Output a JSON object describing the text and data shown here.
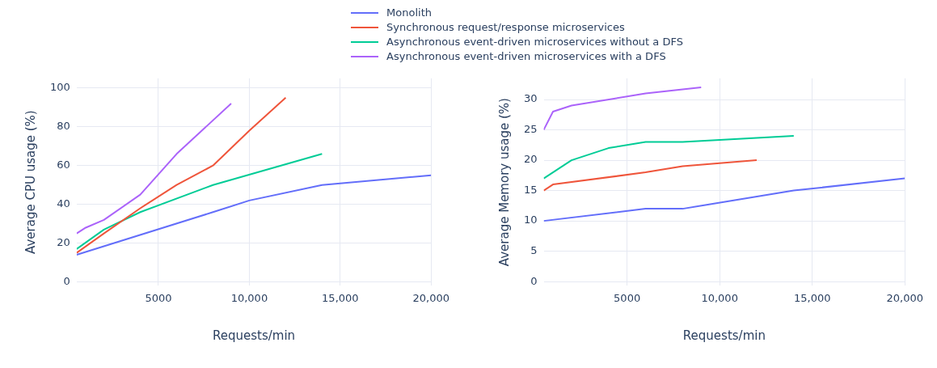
{
  "chart_data": [
    {
      "type": "line",
      "xlabel": "Requests/min",
      "ylabel": "Average CPU usage (%)",
      "xlim": [
        500,
        20000
      ],
      "xticks": [
        5000,
        {
          "value": 10000,
          "label": "10,000"
        },
        {
          "value": 15000,
          "label": "15,000"
        },
        {
          "value": 20000,
          "label": "20,000"
        }
      ],
      "ylim": [
        -2,
        105
      ],
      "yticks": [
        0,
        20,
        40,
        60,
        80,
        100
      ],
      "grid": true,
      "legend": "top",
      "marker": "none",
      "series": [
        {
          "name": "Monolith",
          "color": "#636efa",
          "x": [
            500,
            8000,
            10000,
            14000,
            20000
          ],
          "values": [
            14,
            36,
            42,
            50,
            55
          ]
        },
        {
          "name": "Synchronous request/response microservices",
          "color": "#ef553b",
          "x": [
            500,
            2000,
            4000,
            6000,
            8000,
            10000,
            12000
          ],
          "values": [
            15,
            25,
            38,
            50,
            60,
            78,
            95
          ]
        },
        {
          "name": "Asynchronous event-driven microservices without a DFS",
          "color": "#00cc96",
          "x": [
            500,
            2000,
            4000,
            8000,
            14000
          ],
          "values": [
            17,
            27,
            36,
            50,
            66
          ]
        },
        {
          "name": "Asynchronous event-driven microservices with a DFS",
          "color": "#ab63fa",
          "x": [
            500,
            1000,
            2000,
            4000,
            6000,
            9000
          ],
          "values": [
            25,
            28,
            32,
            45,
            66,
            92
          ]
        }
      ]
    },
    {
      "type": "line",
      "xlabel": "Requests/min",
      "ylabel": "Average Memory usage (%)",
      "xlim": [
        500,
        20000
      ],
      "xticks": [
        5000,
        {
          "value": 10000,
          "label": "10,000"
        },
        {
          "value": 15000,
          "label": "15,000"
        },
        {
          "value": 20000,
          "label": "20,000"
        }
      ],
      "ylim": [
        -0.7,
        33.5
      ],
      "yticks": [
        0,
        5,
        10,
        15,
        20,
        25,
        30
      ],
      "grid": true,
      "marker": "none",
      "series": [
        {
          "color": "#636efa",
          "x": [
            500,
            6000,
            8000,
            14000,
            20000
          ],
          "values": [
            10,
            12,
            12,
            15,
            17
          ]
        },
        {
          "color": "#ef553b",
          "x": [
            500,
            1000,
            6000,
            8000,
            12000
          ],
          "values": [
            15,
            16,
            18,
            19,
            20
          ]
        },
        {
          "color": "#00cc96",
          "x": [
            500,
            2000,
            4000,
            6000,
            8000,
            14000
          ],
          "values": [
            17,
            20,
            22,
            23,
            23,
            24
          ]
        },
        {
          "color": "#ab63fa",
          "x": [
            500,
            1000,
            2000,
            6000,
            9000
          ],
          "values": [
            25,
            28,
            29,
            31,
            32
          ]
        }
      ]
    }
  ]
}
